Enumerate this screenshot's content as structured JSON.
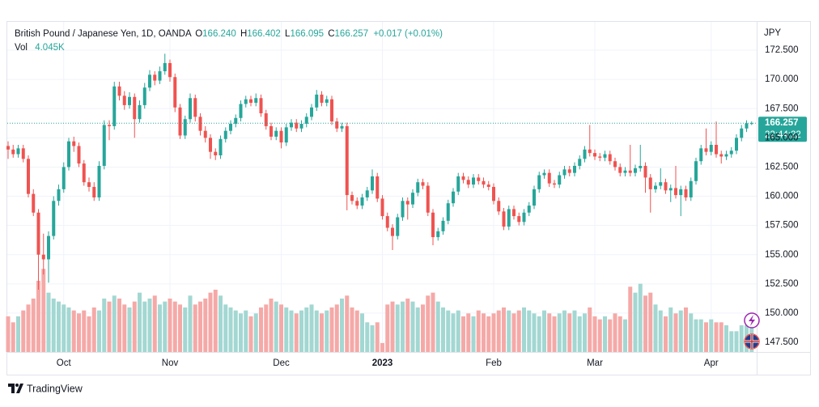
{
  "chart_data": {
    "type": "candlestick",
    "legend": {
      "symbol": "British Pound / Japanese Yen, 1D, OANDA",
      "ohlc": [
        {
          "key": "O",
          "value": 166.24,
          "label": "166.240"
        },
        {
          "key": "H",
          "value": 166.402,
          "label": "166.402"
        },
        {
          "key": "L",
          "value": 166.095,
          "label": "166.095"
        },
        {
          "key": "C",
          "value": 166.257,
          "label": "166.257"
        }
      ],
      "change": "+0.017 (+0.01%)",
      "vol_key": "Vol",
      "vol": {
        "value": 4.045,
        "label": "4.045K"
      }
    },
    "currency": "JPY",
    "last_price": {
      "value": 166.257,
      "label": "166.257"
    },
    "countdown": "22:44:22",
    "ylim": [
      146.67,
      174.72
    ],
    "yticks": [
      {
        "value": 147.5,
        "label": "147.500"
      },
      {
        "value": 150,
        "label": "150.000"
      },
      {
        "value": 152.5,
        "label": "152.500"
      },
      {
        "value": 155,
        "label": "155.000"
      },
      {
        "value": 157.5,
        "label": "157.500"
      },
      {
        "value": 160,
        "label": "160.000"
      },
      {
        "value": 162.5,
        "label": "162.500"
      },
      {
        "value": 165,
        "label": "165.000"
      },
      {
        "value": 167.5,
        "label": "167.500"
      },
      {
        "value": 170,
        "label": "170.000"
      },
      {
        "value": 172.5,
        "label": "172.500"
      }
    ],
    "xticks": [
      {
        "value": 11,
        "label": "Oct"
      },
      {
        "value": 32,
        "label": "Nov"
      },
      {
        "value": 54,
        "label": "Dec"
      },
      {
        "value": 74,
        "label": "2023",
        "bold": true
      },
      {
        "value": 96,
        "label": "Feb"
      },
      {
        "value": 116,
        "label": "Mar"
      },
      {
        "value": 139,
        "label": "Apr"
      }
    ],
    "grid": true,
    "up_color": "#26a69a",
    "down_color": "#ef5350",
    "vol_up_color": "#a3d7d2",
    "vol_down_color": "#f5a9a7",
    "vol_lim": [
      0,
      15
    ],
    "candles": [
      [
        164.3,
        164.7,
        163.2,
        164.0
      ],
      [
        164.0,
        164.4,
        163.3,
        163.6
      ],
      [
        163.6,
        164.4,
        163.3,
        164.1
      ],
      [
        164.1,
        164.4,
        162.9,
        163.2
      ],
      [
        163.2,
        163.5,
        159.9,
        160.2
      ],
      [
        160.2,
        160.6,
        158.3,
        158.6
      ],
      [
        158.6,
        158.9,
        152.0,
        155.0
      ],
      [
        155.0,
        156.8,
        153.3,
        154.6
      ],
      [
        154.6,
        157.0,
        152.6,
        156.6
      ],
      [
        156.6,
        160.0,
        156.3,
        159.6
      ],
      [
        159.6,
        161.0,
        159.2,
        160.6
      ],
      [
        160.6,
        162.9,
        160.3,
        162.5
      ],
      [
        162.5,
        165.0,
        162.2,
        164.7
      ],
      [
        164.7,
        165.1,
        163.8,
        164.3
      ],
      [
        164.3,
        164.6,
        162.5,
        162.8
      ],
      [
        162.8,
        163.1,
        160.9,
        161.2
      ],
      [
        161.2,
        161.6,
        160.4,
        160.8
      ],
      [
        160.8,
        161.2,
        159.6,
        159.9
      ],
      [
        159.9,
        163.0,
        159.6,
        162.6
      ],
      [
        162.6,
        166.5,
        162.3,
        166.1
      ],
      [
        166.1,
        166.5,
        164.8,
        166.0
      ],
      [
        166.0,
        169.8,
        165.7,
        169.4
      ],
      [
        169.4,
        169.8,
        168.2,
        168.6
      ],
      [
        168.6,
        169.0,
        167.4,
        167.8
      ],
      [
        167.8,
        168.9,
        167.5,
        168.5
      ],
      [
        168.5,
        168.8,
        165.0,
        166.6
      ],
      [
        166.6,
        168.2,
        166.3,
        167.8
      ],
      [
        167.8,
        169.7,
        167.5,
        169.3
      ],
      [
        169.3,
        170.8,
        169.0,
        170.4
      ],
      [
        170.4,
        170.7,
        169.5,
        169.9
      ],
      [
        169.9,
        171.1,
        169.6,
        170.7
      ],
      [
        170.7,
        172.2,
        170.4,
        171.4
      ],
      [
        171.4,
        171.7,
        169.8,
        170.2
      ],
      [
        170.2,
        170.5,
        167.2,
        167.6
      ],
      [
        167.6,
        167.9,
        164.9,
        165.2
      ],
      [
        165.2,
        166.9,
        164.9,
        166.6
      ],
      [
        166.6,
        168.8,
        166.3,
        168.4
      ],
      [
        168.4,
        168.7,
        166.4,
        166.8
      ],
      [
        166.8,
        167.1,
        165.2,
        165.6
      ],
      [
        165.6,
        166.0,
        164.6,
        165.0
      ],
      [
        165.0,
        165.3,
        163.2,
        163.8
      ],
      [
        163.8,
        164.1,
        163.1,
        163.5
      ],
      [
        163.5,
        165.2,
        163.2,
        164.9
      ],
      [
        164.9,
        165.9,
        164.6,
        165.6
      ],
      [
        165.6,
        166.5,
        165.3,
        166.2
      ],
      [
        166.2,
        167.0,
        165.9,
        166.7
      ],
      [
        166.7,
        168.2,
        166.4,
        167.9
      ],
      [
        167.9,
        168.6,
        167.6,
        168.3
      ],
      [
        168.3,
        168.6,
        167.7,
        168.0
      ],
      [
        168.0,
        168.8,
        167.7,
        168.4
      ],
      [
        168.4,
        168.7,
        166.8,
        167.1
      ],
      [
        167.1,
        167.4,
        165.7,
        166.0
      ],
      [
        166.0,
        166.3,
        164.8,
        165.1
      ],
      [
        165.1,
        165.9,
        164.8,
        165.6
      ],
      [
        165.6,
        165.9,
        164.1,
        164.6
      ],
      [
        164.6,
        166.2,
        164.3,
        165.9
      ],
      [
        165.9,
        166.6,
        165.6,
        166.3
      ],
      [
        166.3,
        166.6,
        165.5,
        165.8
      ],
      [
        165.8,
        166.5,
        165.5,
        166.2
      ],
      [
        166.2,
        167.1,
        165.9,
        166.8
      ],
      [
        166.8,
        167.9,
        166.5,
        167.6
      ],
      [
        167.6,
        169.1,
        167.3,
        168.7
      ],
      [
        168.7,
        169.0,
        167.7,
        168.0
      ],
      [
        168.0,
        168.6,
        167.7,
        168.3
      ],
      [
        168.3,
        168.6,
        166.1,
        166.4
      ],
      [
        166.4,
        166.7,
        165.5,
        165.8
      ],
      [
        165.8,
        166.3,
        165.5,
        166.0
      ],
      [
        166.0,
        166.3,
        158.8,
        160.1
      ],
      [
        160.1,
        160.4,
        159.3,
        159.6
      ],
      [
        159.6,
        159.9,
        158.9,
        159.2
      ],
      [
        159.2,
        160.2,
        158.9,
        159.9
      ],
      [
        159.9,
        160.8,
        159.6,
        160.5
      ],
      [
        160.5,
        162.3,
        160.2,
        161.7
      ],
      [
        161.7,
        162.0,
        159.5,
        159.8
      ],
      [
        159.8,
        160.1,
        158.0,
        158.3
      ],
      [
        158.3,
        158.6,
        157.0,
        157.3
      ],
      [
        157.3,
        157.6,
        155.4,
        156.6
      ],
      [
        156.6,
        158.5,
        156.3,
        158.2
      ],
      [
        158.2,
        159.9,
        157.9,
        159.6
      ],
      [
        159.6,
        159.9,
        158.0,
        159.3
      ],
      [
        159.3,
        160.6,
        159.0,
        160.3
      ],
      [
        160.3,
        161.5,
        160.0,
        161.2
      ],
      [
        161.2,
        161.5,
        160.6,
        160.9
      ],
      [
        160.9,
        161.2,
        158.3,
        158.6
      ],
      [
        158.6,
        158.9,
        155.8,
        156.5
      ],
      [
        156.5,
        157.3,
        156.2,
        157.0
      ],
      [
        157.0,
        158.2,
        156.7,
        157.9
      ],
      [
        157.9,
        159.7,
        157.6,
        159.4
      ],
      [
        159.4,
        160.7,
        159.1,
        160.4
      ],
      [
        160.4,
        162.0,
        160.1,
        161.7
      ],
      [
        161.7,
        162.0,
        161.1,
        161.4
      ],
      [
        161.4,
        161.7,
        160.7,
        161.0
      ],
      [
        161.0,
        161.9,
        160.7,
        161.6
      ],
      [
        161.6,
        161.9,
        161.0,
        161.3
      ],
      [
        161.3,
        161.6,
        160.7,
        161.0
      ],
      [
        161.0,
        161.3,
        160.5,
        160.8
      ],
      [
        160.8,
        161.1,
        159.3,
        159.6
      ],
      [
        159.6,
        159.9,
        158.4,
        158.7
      ],
      [
        158.7,
        159.0,
        157.1,
        157.4
      ],
      [
        157.4,
        159.2,
        157.1,
        158.9
      ],
      [
        158.9,
        159.2,
        158.0,
        158.3
      ],
      [
        158.3,
        158.6,
        157.5,
        157.8
      ],
      [
        157.8,
        158.9,
        157.5,
        158.6
      ],
      [
        158.6,
        159.5,
        158.3,
        159.2
      ],
      [
        159.2,
        160.9,
        158.9,
        160.6
      ],
      [
        160.6,
        162.1,
        160.3,
        161.8
      ],
      [
        161.8,
        162.3,
        161.5,
        162.0
      ],
      [
        162.0,
        162.3,
        160.8,
        161.1
      ],
      [
        161.1,
        161.4,
        160.7,
        161.0
      ],
      [
        161.0,
        162.1,
        160.7,
        161.8
      ],
      [
        161.8,
        162.6,
        161.5,
        162.3
      ],
      [
        162.3,
        162.6,
        161.7,
        162.0
      ],
      [
        162.0,
        162.9,
        161.7,
        162.6
      ],
      [
        162.6,
        163.5,
        162.3,
        163.2
      ],
      [
        163.2,
        164.3,
        162.9,
        164.0
      ],
      [
        164.0,
        166.1,
        163.4,
        163.7
      ],
      [
        163.7,
        164.0,
        163.1,
        163.4
      ],
      [
        163.4,
        163.7,
        163.0,
        163.3
      ],
      [
        163.3,
        163.9,
        163.0,
        163.6
      ],
      [
        163.6,
        163.9,
        162.7,
        163.0
      ],
      [
        163.0,
        163.3,
        162.2,
        162.5
      ],
      [
        162.5,
        162.8,
        161.7,
        162.0
      ],
      [
        162.0,
        162.5,
        161.7,
        162.2
      ],
      [
        162.2,
        164.4,
        161.7,
        162.0
      ],
      [
        162.0,
        162.7,
        161.7,
        162.4
      ],
      [
        162.4,
        164.4,
        162.1,
        162.6
      ],
      [
        162.6,
        162.9,
        160.3,
        161.6
      ],
      [
        161.6,
        161.9,
        158.6,
        160.6
      ],
      [
        160.6,
        161.2,
        160.3,
        160.9
      ],
      [
        160.9,
        162.4,
        160.6,
        161.2
      ],
      [
        161.2,
        161.5,
        160.2,
        160.5
      ],
      [
        160.5,
        161.0,
        159.5,
        160.7
      ],
      [
        160.7,
        162.6,
        159.8,
        160.1
      ],
      [
        160.1,
        160.9,
        158.3,
        160.6
      ],
      [
        160.6,
        160.9,
        159.6,
        159.9
      ],
      [
        159.9,
        161.6,
        159.6,
        161.3
      ],
      [
        161.3,
        163.3,
        161.0,
        163.0
      ],
      [
        163.0,
        164.4,
        162.7,
        164.1
      ],
      [
        164.1,
        165.8,
        163.5,
        163.8
      ],
      [
        163.8,
        164.7,
        163.5,
        164.4
      ],
      [
        164.4,
        166.4,
        163.3,
        163.6
      ],
      [
        163.6,
        163.9,
        162.8,
        163.4
      ],
      [
        163.4,
        163.9,
        163.1,
        163.6
      ],
      [
        163.6,
        164.2,
        163.3,
        163.9
      ],
      [
        163.9,
        165.3,
        163.6,
        165.0
      ],
      [
        165.0,
        166.1,
        164.7,
        165.8
      ],
      [
        165.8,
        166.5,
        165.5,
        166.24
      ],
      [
        166.24,
        166.402,
        166.095,
        166.257
      ]
    ],
    "volumes": [
      6,
      5,
      6,
      7,
      8,
      9,
      12,
      14,
      10,
      9,
      8.5,
      8,
      7.5,
      7,
      6.5,
      7,
      6,
      7.5,
      7,
      9,
      8.5,
      9.5,
      9,
      8,
      7.5,
      8.5,
      10,
      8.5,
      9,
      9.5,
      8,
      8.5,
      9,
      8.5,
      8,
      7.5,
      9.5,
      8,
      8.5,
      9,
      10,
      10.5,
      9.5,
      8,
      7.5,
      7,
      6.5,
      7,
      6,
      6.5,
      7.5,
      8,
      9,
      8.5,
      8,
      7.5,
      7,
      6.5,
      7,
      7.5,
      8,
      7,
      6.5,
      7,
      7.5,
      8,
      9,
      9.5,
      7.5,
      7,
      6.5,
      5,
      4.5,
      5,
      1.5,
      8,
      8.5,
      8,
      8.5,
      9,
      8.5,
      7.5,
      8,
      9.5,
      10,
      8.5,
      7.5,
      7,
      6.5,
      7,
      6,
      6.5,
      6,
      7,
      6.5,
      6,
      6.5,
      7,
      7.5,
      7,
      6.5,
      7,
      7.5,
      7,
      6.5,
      6,
      7,
      6.5,
      6,
      6.5,
      7,
      6.5,
      7,
      6,
      6.5,
      7.5,
      6,
      5.5,
      6,
      5.5,
      6.5,
      6,
      5.5,
      11,
      10,
      11.5,
      9.5,
      10,
      8,
      7,
      6,
      7.5,
      6.5,
      7,
      7.5,
      6.5,
      5.5,
      5.5,
      5,
      5.5,
      5,
      5,
      4.5,
      3.5,
      3.5,
      4.5,
      4.5,
      4.045
    ]
  },
  "footer": {
    "brand": "TradingView"
  }
}
